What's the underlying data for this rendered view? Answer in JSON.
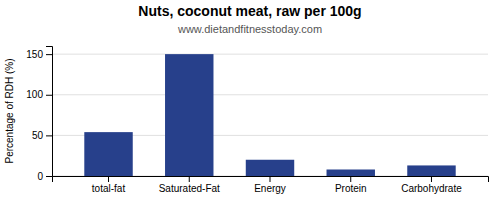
{
  "chart_data": {
    "type": "bar",
    "title": "Nuts, coconut meat, raw per 100g",
    "subtitle": "www.dietandfitnesstoday.com",
    "categories": [
      "total-fat",
      "Saturated-Fat",
      "Energy",
      "Protein",
      "Carbohydrate"
    ],
    "values": [
      54,
      150,
      20,
      8,
      13
    ],
    "color": "#27408B",
    "ylabel": "Percentage of RDH (%)",
    "ylim": [
      0,
      160
    ],
    "yticks": [
      0,
      50,
      100,
      150
    ],
    "grid": true
  }
}
